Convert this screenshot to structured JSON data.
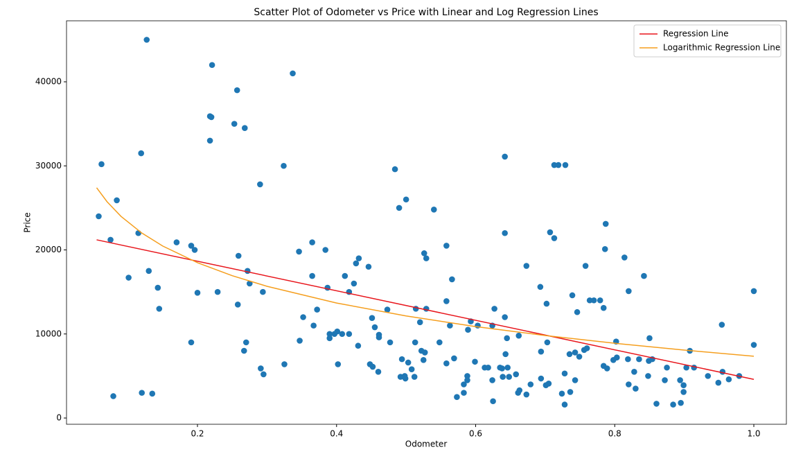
{
  "chart_data": {
    "type": "scatter",
    "title": "Scatter Plot of Odometer vs Price with Linear and Log Regression Lines",
    "xlabel": "Odometer",
    "ylabel": "Price",
    "xlim": [
      0.0117,
      1.0468
    ],
    "ylim": [
      -742,
      47258
    ],
    "xticks": [
      0.2,
      0.4,
      0.6,
      0.8,
      {
        "value": 1,
        "label": "1.0"
      }
    ],
    "yticks": [
      0,
      10000,
      20000,
      30000,
      40000
    ],
    "legend": "upper right",
    "points": {
      "color": "#1f77b4",
      "x": [
        0.058,
        0.062,
        0.075,
        0.084,
        0.079,
        0.101,
        0.115,
        0.119,
        0.127,
        0.13,
        0.143,
        0.145,
        0.12,
        0.135,
        0.17,
        0.191,
        0.196,
        0.2,
        0.191,
        0.218,
        0.22,
        0.218,
        0.221,
        0.229,
        0.253,
        0.257,
        0.268,
        0.259,
        0.258,
        0.272,
        0.275,
        0.27,
        0.267,
        0.29,
        0.294,
        0.291,
        0.295,
        0.324,
        0.325,
        0.337,
        0.346,
        0.347,
        0.352,
        0.365,
        0.365,
        0.367,
        0.372,
        0.384,
        0.387,
        0.39,
        0.39,
        0.397,
        0.401,
        0.402,
        0.408,
        0.412,
        0.418,
        0.418,
        0.425,
        0.428,
        0.432,
        0.431,
        0.446,
        0.448,
        0.451,
        0.452,
        0.455,
        0.461,
        0.461,
        0.46,
        0.473,
        0.477,
        0.484,
        0.49,
        0.494,
        0.492,
        0.499,
        0.498,
        0.5,
        0.503,
        0.508,
        0.512,
        0.513,
        0.514,
        0.52,
        0.522,
        0.526,
        0.527,
        0.525,
        0.529,
        0.529,
        0.54,
        0.548,
        0.558,
        0.558,
        0.558,
        0.563,
        0.566,
        0.569,
        0.573,
        0.583,
        0.583,
        0.588,
        0.588,
        0.589,
        0.593,
        0.599,
        0.603,
        0.613,
        0.618,
        0.624,
        0.624,
        0.627,
        0.625,
        0.635,
        0.638,
        0.639,
        0.642,
        0.642,
        0.642,
        0.643,
        0.645,
        0.646,
        0.648,
        0.658,
        0.662,
        0.661,
        0.663,
        0.673,
        0.673,
        0.679,
        0.693,
        0.694,
        0.694,
        0.702,
        0.703,
        0.701,
        0.705,
        0.707,
        0.713,
        0.713,
        0.719,
        0.729,
        0.724,
        0.728,
        0.728,
        0.735,
        0.736,
        0.739,
        0.743,
        0.743,
        0.746,
        0.749,
        0.756,
        0.758,
        0.76,
        0.764,
        0.77,
        0.779,
        0.784,
        0.784,
        0.787,
        0.786,
        0.789,
        0.798,
        0.802,
        0.803,
        0.814,
        0.819,
        0.82,
        0.82,
        0.828,
        0.83,
        0.835,
        0.842,
        0.848,
        0.85,
        0.849,
        0.854,
        0.86,
        0.872,
        0.875,
        0.884,
        0.894,
        0.895,
        0.899,
        0.899,
        0.903,
        0.908,
        0.914,
        0.934,
        0.949,
        0.954,
        0.955,
        0.964,
        0.979,
        1.0,
        1.0
      ],
      "y": [
        24000,
        30200,
        21200,
        25900,
        2600,
        16700,
        22000,
        31500,
        45000,
        17500,
        15500,
        13000,
        3000,
        2900,
        20900,
        20500,
        20000,
        14900,
        9000,
        35900,
        35800,
        33000,
        42000,
        15000,
        35000,
        39000,
        34500,
        19300,
        13500,
        17500,
        16000,
        9000,
        8000,
        27800,
        15000,
        5900,
        5200,
        30000,
        6400,
        41000,
        19800,
        9200,
        12000,
        20900,
        16900,
        11000,
        12900,
        20000,
        15500,
        10000,
        9500,
        10000,
        10300,
        6400,
        10000,
        16900,
        15000,
        10000,
        16000,
        18400,
        19000,
        8600,
        18000,
        6400,
        11900,
        6100,
        10800,
        9900,
        9600,
        5500,
        12900,
        9000,
        29600,
        25000,
        7000,
        4900,
        4700,
        5000,
        26000,
        6600,
        5800,
        4900,
        9000,
        13000,
        11400,
        8000,
        19600,
        7800,
        6900,
        19000,
        13000,
        24800,
        9000,
        6500,
        20500,
        13900,
        11000,
        16500,
        7100,
        2500,
        4000,
        3000,
        5000,
        4500,
        10500,
        11500,
        6700,
        11000,
        6000,
        6000,
        4500,
        11000,
        13000,
        2000,
        6000,
        5900,
        4900,
        31100,
        22000,
        12000,
        7600,
        9500,
        6000,
        4900,
        5200,
        9800,
        3000,
        3300,
        18100,
        2800,
        4000,
        15600,
        7900,
        4700,
        13600,
        9000,
        3900,
        4100,
        22100,
        21400,
        30100,
        30100,
        30100,
        2900,
        1600,
        5300,
        7600,
        3100,
        14600,
        7800,
        4500,
        12600,
        7300,
        8100,
        18100,
        8300,
        14000,
        14000,
        14000,
        13100,
        6200,
        23100,
        20100,
        5900,
        6900,
        9100,
        7200,
        19100,
        7000,
        4000,
        15100,
        5500,
        3500,
        7000,
        16900,
        5000,
        9500,
        6800,
        7000,
        1700,
        4500,
        6000,
        1600,
        4500,
        1800,
        3100,
        3900,
        6000,
        8000,
        6000,
        5000,
        4200,
        11100,
        5500,
        4600,
        5000,
        15100,
        8700
      ]
    },
    "series": [
      {
        "name": "Regression Line",
        "color": "#e8151b",
        "x": [
          0.055,
          1.0
        ],
        "values": [
          21200,
          4600
        ]
      },
      {
        "name": "Logarithmic Regression Line",
        "color": "#f59e1d",
        "x": [
          0.055,
          0.07,
          0.09,
          0.12,
          0.15,
          0.2,
          0.25,
          0.3,
          0.4,
          0.5,
          0.6,
          0.7,
          0.8,
          0.9,
          1.0
        ],
        "values": [
          27400,
          25733,
          23996,
          22007,
          20465,
          18476,
          16933,
          15673,
          13684,
          12142,
          10881,
          9816,
          8893,
          8078,
          7350
        ]
      }
    ]
  }
}
